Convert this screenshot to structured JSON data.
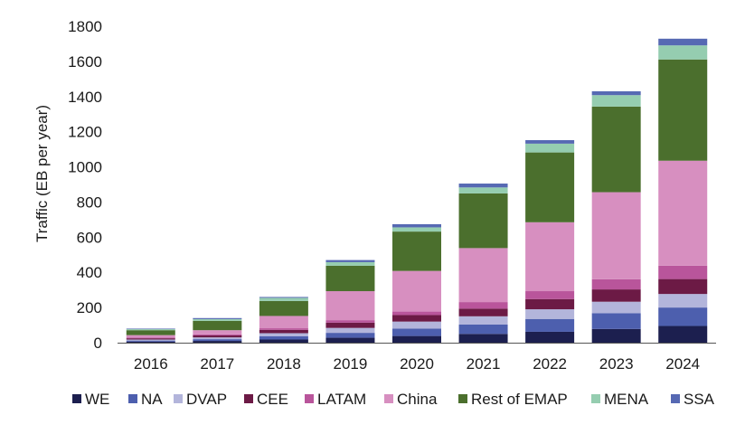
{
  "chart_data": {
    "type": "bar",
    "stacked": true,
    "ylabel": "Traffic (EB per year)",
    "xlabel": "",
    "ylim": [
      0,
      1800
    ],
    "yticks": [
      0,
      200,
      400,
      600,
      800,
      1000,
      1200,
      1400,
      1600,
      1800
    ],
    "grid": false,
    "legend_position": "bottom",
    "categories": [
      "2016",
      "2017",
      "2018",
      "2019",
      "2020",
      "2021",
      "2022",
      "2023",
      "2024"
    ],
    "series": [
      {
        "name": "WE",
        "color": "#1c1f4f",
        "values": [
          6,
          10,
          18,
          28,
          38,
          50,
          62,
          78,
          95
        ]
      },
      {
        "name": "NA",
        "color": "#4d5fae",
        "values": [
          6,
          10,
          18,
          28,
          42,
          53,
          73,
          90,
          105
        ]
      },
      {
        "name": "DVAP",
        "color": "#b3b5db",
        "values": [
          6,
          10,
          18,
          28,
          40,
          47,
          55,
          65,
          77
        ]
      },
      {
        "name": "CEE",
        "color": "#6c1a45",
        "values": [
          7,
          11,
          19,
          30,
          37,
          44,
          58,
          70,
          85
        ]
      },
      {
        "name": "LATAM",
        "color": "#b9559b",
        "values": [
          4,
          6,
          9,
          14,
          20,
          37,
          45,
          58,
          76
        ]
      },
      {
        "name": "China",
        "color": "#d78fc0",
        "values": [
          14,
          24,
          70,
          165,
          231,
          307,
          392,
          495,
          597
        ]
      },
      {
        "name": "Rest of EMAP",
        "color": "#4b6f2d",
        "values": [
          28,
          53,
          85,
          145,
          224,
          311,
          397,
          487,
          576
        ]
      },
      {
        "name": "MENA",
        "color": "#95cdb0",
        "values": [
          6,
          10,
          18,
          20,
          24,
          34,
          50,
          65,
          80
        ]
      },
      {
        "name": "SSA",
        "color": "#5669b3",
        "values": [
          3,
          6,
          5,
          12,
          18,
          22,
          20,
          22,
          38
        ]
      }
    ]
  }
}
